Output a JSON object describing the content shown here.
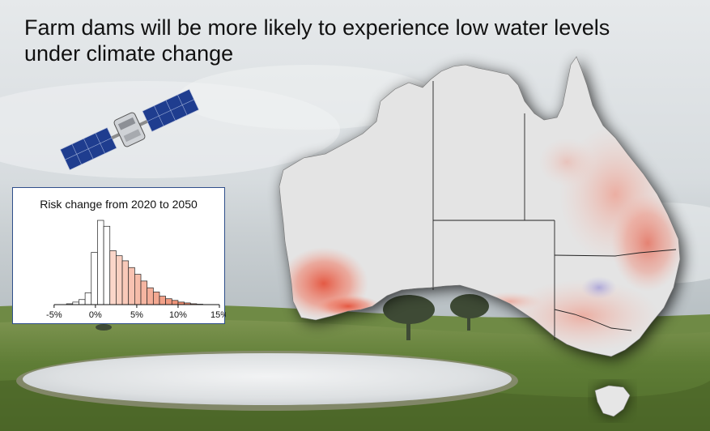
{
  "headline": {
    "line1": "Farm dams will be more likely to experience low water levels",
    "line2": "under climate change"
  },
  "colors": {
    "sky": "#dfe3e6",
    "grass": "#5b7a33",
    "water": "#dfe2e5",
    "land": "#e4e4e4",
    "risk_increase": "#e8553f",
    "risk_decrease": "#7b75d0",
    "bar_positive": "#f4a58c",
    "bar_neutral": "#ffffff",
    "panel_border": "#2f4f8a"
  },
  "icons": [
    "satellite-icon",
    "australia-map",
    "farm-dam"
  ],
  "chart_data": {
    "type": "bar",
    "title": "Risk change from 2020 to 2050",
    "xlabel": "",
    "ylabel": "",
    "xlim": [
      -9,
      15
    ],
    "bin_width": 0.75,
    "xticks": [
      -5,
      0,
      5,
      10,
      15
    ],
    "xtick_labels": [
      "-5%",
      "0%",
      "5%",
      "10%",
      "15%"
    ],
    "bins_start": [
      -3.5,
      -2.75,
      -2.0,
      -1.25,
      -0.5,
      0.25,
      1.0,
      1.75,
      2.5,
      3.25,
      4.0,
      4.75,
      5.5,
      6.25,
      7.0,
      7.75,
      8.5,
      9.25,
      10.0,
      10.75,
      11.5,
      12.25
    ],
    "values": [
      1,
      3,
      6,
      14,
      62,
      100,
      93,
      64,
      58,
      52,
      44,
      36,
      28,
      20,
      15,
      10,
      7,
      5,
      3,
      2,
      1,
      0.5
    ],
    "grid": false
  }
}
